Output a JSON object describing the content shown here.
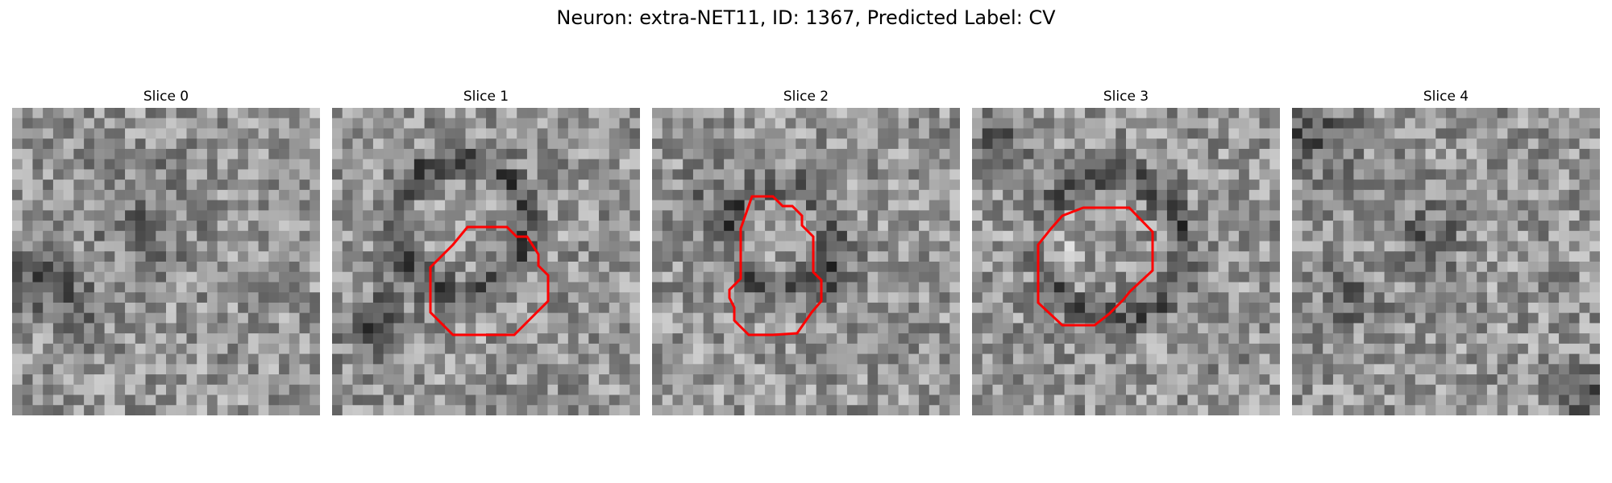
{
  "figure": {
    "title": "Neuron: extra-NET11, ID: 1367, Predicted Label: CV"
  },
  "colors": {
    "contour": "#ff0000",
    "background": "#ffffff"
  },
  "image": {
    "grid_size": 30,
    "colormap": "gray"
  },
  "slices": [
    {
      "title": "Slice 0",
      "has_contour": false
    },
    {
      "title": "Slice 1",
      "has_contour": true
    },
    {
      "title": "Slice 2",
      "has_contour": true
    },
    {
      "title": "Slice 3",
      "has_contour": true
    },
    {
      "title": "Slice 4",
      "has_contour": false
    }
  ]
}
